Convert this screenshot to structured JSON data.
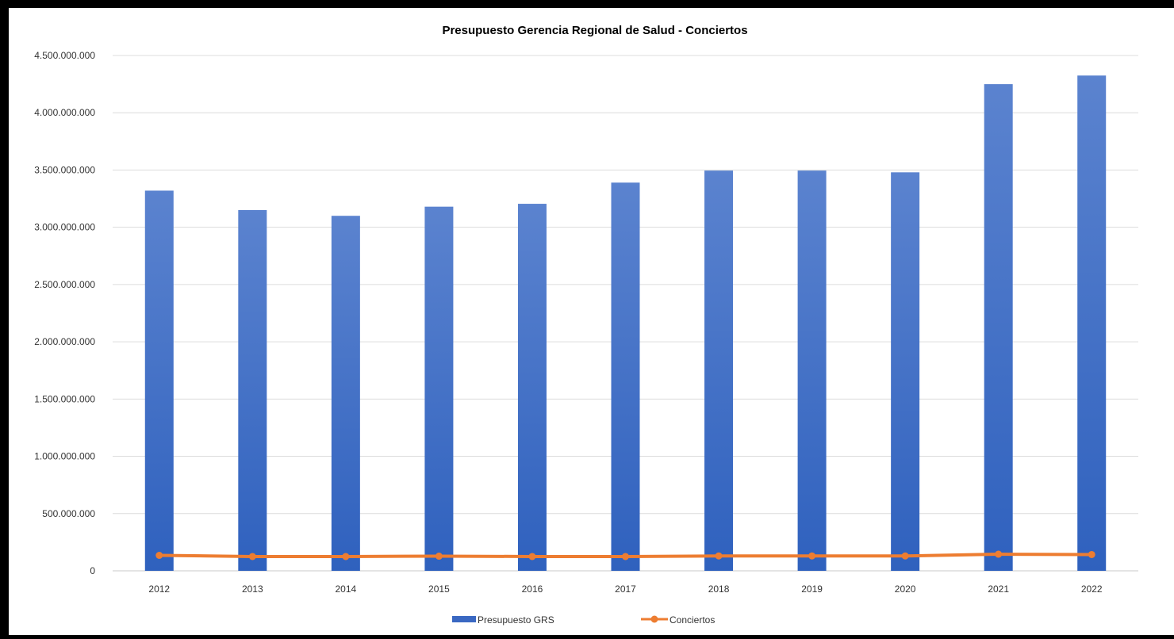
{
  "chart_data": {
    "type": "bar",
    "title": "Presupuesto Gerencia Regional de Salud - Conciertos",
    "categories": [
      "2012",
      "2013",
      "2014",
      "2015",
      "2016",
      "2017",
      "2018",
      "2019",
      "2020",
      "2021",
      "2022"
    ],
    "series": [
      {
        "name": "Presupuesto GRS",
        "type": "bar",
        "color": "#4472C4",
        "values": [
          3320000000,
          3150000000,
          3100000000,
          3180000000,
          3205000000,
          3390000000,
          3495000000,
          3495000000,
          3480000000,
          4250000000,
          4325000000
        ]
      },
      {
        "name": "Conciertos",
        "type": "line",
        "color": "#ED7D31",
        "values": [
          135000000,
          125000000,
          125000000,
          128000000,
          125000000,
          125000000,
          130000000,
          130000000,
          130000000,
          145000000,
          142000000
        ]
      }
    ],
    "y_ticks": [
      "0",
      "500.000.000",
      "1.000.000.000",
      "1.500.000.000",
      "2.000.000.000",
      "2.500.000.000",
      "3.000.000.000",
      "3.500.000.000",
      "4.000.000.000",
      "4.500.000.000"
    ],
    "ylim": [
      0,
      4500000000
    ],
    "grid": true,
    "legend_position": "bottom"
  }
}
